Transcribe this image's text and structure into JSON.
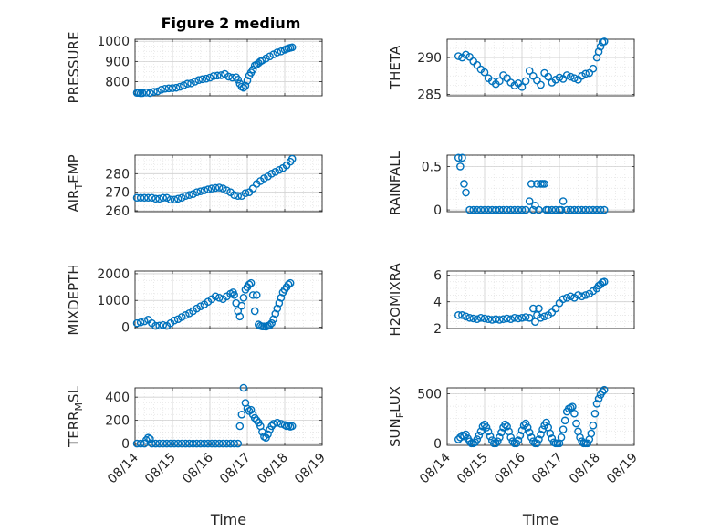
{
  "figure": {
    "title": "Figure 2 medium"
  },
  "colors": {
    "marker": "#0072BD",
    "grid": "#d0d0d0",
    "axis": "#262626"
  },
  "chart_data": [
    {
      "type": "scatter",
      "ylabel": "PRESSURE",
      "yticks": [
        800,
        900,
        1000
      ],
      "ylim": [
        730,
        1010
      ],
      "xlim": [
        0,
        5
      ],
      "xticks": [
        0,
        1,
        2,
        3,
        4,
        5
      ],
      "xticklabels": [],
      "xlabel": "",
      "title": "Figure 2 medium",
      "x": [
        0.05,
        0.1,
        0.15,
        0.2,
        0.3,
        0.4,
        0.5,
        0.6,
        0.7,
        0.8,
        0.9,
        1.0,
        1.1,
        1.2,
        1.3,
        1.4,
        1.5,
        1.6,
        1.7,
        1.8,
        1.9,
        2.0,
        2.1,
        2.2,
        2.3,
        2.4,
        2.5,
        2.6,
        2.7,
        2.75,
        2.8,
        2.85,
        2.9,
        2.95,
        3.0,
        3.05,
        3.1,
        3.15,
        3.2,
        3.25,
        3.3,
        3.35,
        3.4,
        3.5,
        3.6,
        3.7,
        3.8,
        3.9,
        4.0,
        4.05,
        4.1,
        4.15,
        4.2
      ],
      "y": [
        745,
        745,
        743,
        744,
        746,
        744,
        750,
        752,
        760,
        765,
        767,
        768,
        770,
        775,
        782,
        790,
        792,
        800,
        808,
        812,
        815,
        820,
        828,
        830,
        832,
        838,
        825,
        820,
        822,
        810,
        790,
        775,
        770,
        780,
        805,
        830,
        845,
        860,
        880,
        885,
        892,
        900,
        905,
        915,
        925,
        935,
        945,
        950,
        958,
        962,
        965,
        968,
        970
      ]
    },
    {
      "type": "scatter",
      "ylabel": "THETA",
      "yticks": [
        285,
        290
      ],
      "ylim": [
        284.8,
        292.5
      ],
      "xlim": [
        0,
        5
      ],
      "xticks": [
        0,
        1,
        2,
        3,
        4,
        5
      ],
      "xticklabels": [],
      "xlabel": "",
      "x": [
        0.3,
        0.4,
        0.5,
        0.6,
        0.7,
        0.8,
        0.9,
        1.0,
        1.1,
        1.2,
        1.3,
        1.4,
        1.5,
        1.6,
        1.7,
        1.8,
        1.9,
        2.0,
        2.1,
        2.2,
        2.3,
        2.4,
        2.5,
        2.6,
        2.7,
        2.8,
        2.9,
        3.0,
        3.1,
        3.2,
        3.3,
        3.4,
        3.5,
        3.6,
        3.7,
        3.8,
        3.9,
        4.0,
        4.05,
        4.1,
        4.15,
        4.2
      ],
      "y": [
        290.2,
        290.0,
        290.4,
        290.1,
        289.5,
        289.0,
        288.4,
        288.0,
        287.2,
        286.8,
        286.4,
        286.8,
        287.6,
        287.2,
        286.6,
        286.2,
        286.5,
        286.0,
        286.8,
        288.2,
        287.5,
        286.9,
        286.3,
        287.9,
        287.4,
        286.6,
        287.0,
        287.3,
        287.1,
        287.6,
        287.4,
        287.2,
        287.0,
        287.5,
        287.8,
        287.9,
        288.5,
        290.0,
        290.8,
        291.5,
        292.1,
        292.2
      ]
    },
    {
      "type": "scatter",
      "ylabel": "AIR_TEMP",
      "yticks": [
        260,
        270,
        280
      ],
      "ylim": [
        259.5,
        290
      ],
      "xlim": [
        0,
        5
      ],
      "xticks": [
        0,
        1,
        2,
        3,
        4,
        5
      ],
      "xticklabels": [],
      "xlabel": "",
      "x": [
        0.05,
        0.15,
        0.25,
        0.35,
        0.45,
        0.55,
        0.65,
        0.75,
        0.85,
        0.95,
        1.05,
        1.15,
        1.25,
        1.35,
        1.45,
        1.55,
        1.65,
        1.75,
        1.85,
        1.95,
        2.05,
        2.15,
        2.25,
        2.35,
        2.45,
        2.55,
        2.65,
        2.75,
        2.85,
        2.95,
        3.05,
        3.15,
        3.25,
        3.35,
        3.45,
        3.55,
        3.65,
        3.75,
        3.85,
        3.95,
        4.05,
        4.15,
        4.2
      ],
      "y": [
        267,
        267,
        267,
        267,
        267,
        266.5,
        266.5,
        267,
        267,
        266,
        266,
        266.5,
        267,
        268,
        268.5,
        269,
        270,
        270.5,
        271,
        271.5,
        272,
        272.3,
        272.5,
        272,
        271,
        270,
        268.5,
        268,
        268,
        269.5,
        270,
        272,
        274.5,
        276,
        277.5,
        278.5,
        280,
        281,
        282,
        283,
        284.5,
        286.5,
        288
      ]
    },
    {
      "type": "scatter",
      "ylabel": "RAINFALL",
      "yticks": [
        0,
        0.5
      ],
      "ylim": [
        -0.02,
        0.63
      ],
      "xlim": [
        0,
        5
      ],
      "xticks": [
        0,
        1,
        2,
        3,
        4,
        5
      ],
      "xticklabels": [],
      "xlabel": "",
      "x": [
        0.3,
        0.35,
        0.4,
        0.45,
        0.5,
        0.6,
        0.7,
        0.8,
        0.9,
        1.0,
        1.1,
        1.2,
        1.3,
        1.4,
        1.5,
        1.6,
        1.7,
        1.8,
        1.9,
        2.0,
        2.1,
        2.2,
        2.25,
        2.3,
        2.35,
        2.4,
        2.45,
        2.5,
        2.55,
        2.6,
        2.65,
        2.7,
        2.8,
        2.9,
        3.0,
        3.05,
        3.1,
        3.2,
        3.3,
        3.4,
        3.5,
        3.6,
        3.7,
        3.8,
        3.9,
        4.0,
        4.1,
        4.2
      ],
      "y": [
        0.6,
        0.5,
        0.6,
        0.3,
        0.2,
        0,
        0,
        0,
        0,
        0,
        0,
        0,
        0,
        0,
        0,
        0,
        0,
        0,
        0,
        0,
        0,
        0.1,
        0.3,
        0,
        0.05,
        0.3,
        0,
        0.3,
        0.3,
        0.3,
        0,
        0,
        0,
        0,
        0,
        0,
        0.1,
        0,
        0,
        0,
        0,
        0,
        0,
        0,
        0,
        0,
        0,
        0
      ]
    },
    {
      "type": "scatter",
      "ylabel": "MIXDEPTH",
      "yticks": [
        0,
        1000,
        2000
      ],
      "ylim": [
        -50,
        2100
      ],
      "xlim": [
        0,
        5
      ],
      "xticks": [
        0,
        1,
        2,
        3,
        4,
        5
      ],
      "xticklabels": [],
      "xlabel": "",
      "x": [
        0.05,
        0.15,
        0.25,
        0.35,
        0.45,
        0.55,
        0.65,
        0.75,
        0.85,
        0.95,
        1.05,
        1.15,
        1.25,
        1.35,
        1.45,
        1.55,
        1.65,
        1.75,
        1.85,
        1.95,
        2.05,
        2.15,
        2.25,
        2.35,
        2.45,
        2.55,
        2.62,
        2.65,
        2.7,
        2.75,
        2.8,
        2.85,
        2.9,
        2.95,
        3.0,
        3.05,
        3.1,
        3.15,
        3.2,
        3.25,
        3.3,
        3.35,
        3.4,
        3.45,
        3.5,
        3.55,
        3.6,
        3.65,
        3.7,
        3.75,
        3.8,
        3.85,
        3.9,
        3.95,
        4.0,
        4.05,
        4.1,
        4.15
      ],
      "y": [
        150,
        180,
        220,
        280,
        150,
        50,
        60,
        80,
        50,
        150,
        250,
        300,
        380,
        450,
        520,
        600,
        700,
        780,
        850,
        950,
        1050,
        1150,
        1100,
        1050,
        1150,
        1250,
        1300,
        1200,
        900,
        600,
        400,
        800,
        1100,
        1400,
        1500,
        1600,
        1650,
        1200,
        600,
        1200,
        100,
        50,
        30,
        30,
        20,
        50,
        80,
        150,
        300,
        500,
        700,
        900,
        1100,
        1300,
        1400,
        1500,
        1600,
        1650
      ]
    },
    {
      "type": "scatter",
      "ylabel": "H2OMIXRA",
      "yticks": [
        2,
        4,
        6
      ],
      "ylim": [
        2,
        6.3
      ],
      "xlim": [
        0,
        5
      ],
      "xticks": [
        0,
        1,
        2,
        3,
        4,
        5
      ],
      "xticklabels": [],
      "xlabel": "",
      "x": [
        0.3,
        0.4,
        0.5,
        0.6,
        0.7,
        0.8,
        0.9,
        1.0,
        1.1,
        1.2,
        1.3,
        1.4,
        1.5,
        1.6,
        1.7,
        1.8,
        1.9,
        2.0,
        2.1,
        2.2,
        2.3,
        2.35,
        2.4,
        2.45,
        2.5,
        2.6,
        2.7,
        2.8,
        2.9,
        3.0,
        3.1,
        3.2,
        3.3,
        3.4,
        3.5,
        3.6,
        3.7,
        3.8,
        3.9,
        4.0,
        4.05,
        4.1,
        4.15,
        4.2
      ],
      "y": [
        3,
        3,
        2.9,
        2.8,
        2.75,
        2.7,
        2.8,
        2.75,
        2.7,
        2.65,
        2.7,
        2.65,
        2.7,
        2.75,
        2.7,
        2.8,
        2.75,
        2.8,
        2.85,
        2.8,
        3.5,
        2.5,
        3.0,
        3.5,
        2.8,
        2.9,
        3.0,
        3.2,
        3.5,
        3.9,
        4.2,
        4.3,
        4.4,
        4.3,
        4.5,
        4.4,
        4.5,
        4.6,
        4.8,
        5.0,
        5.2,
        5.3,
        5.45,
        5.5
      ]
    },
    {
      "type": "scatter",
      "ylabel": "TERR_MSL",
      "yticks": [
        0,
        200,
        400
      ],
      "ylim": [
        -15,
        480
      ],
      "xlim": [
        0,
        5
      ],
      "xticks": [
        0,
        1,
        2,
        3,
        4,
        5
      ],
      "xticklabels": [
        "08/14",
        "08/15",
        "08/16",
        "08/17",
        "08/18",
        "08/19"
      ],
      "xlabel": "Time",
      "x": [
        0.05,
        0.15,
        0.25,
        0.3,
        0.35,
        0.4,
        0.45,
        0.55,
        0.65,
        0.75,
        0.85,
        0.95,
        1.05,
        1.15,
        1.25,
        1.35,
        1.45,
        1.55,
        1.65,
        1.75,
        1.85,
        1.95,
        2.05,
        2.15,
        2.25,
        2.35,
        2.45,
        2.55,
        2.65,
        2.75,
        2.8,
        2.85,
        2.9,
        2.95,
        3.0,
        3.05,
        3.1,
        3.15,
        3.2,
        3.25,
        3.3,
        3.35,
        3.4,
        3.45,
        3.5,
        3.55,
        3.6,
        3.65,
        3.7,
        3.8,
        3.9,
        4.0,
        4.05,
        4.1,
        4.15,
        4.2
      ],
      "y": [
        0,
        0,
        0,
        30,
        50,
        40,
        0,
        0,
        0,
        0,
        0,
        0,
        0,
        0,
        0,
        0,
        0,
        0,
        0,
        0,
        0,
        0,
        0,
        0,
        0,
        0,
        0,
        0,
        0,
        0,
        150,
        250,
        480,
        350,
        300,
        280,
        290,
        250,
        220,
        200,
        180,
        150,
        100,
        60,
        50,
        80,
        120,
        150,
        170,
        180,
        170,
        160,
        150,
        155,
        145,
        150
      ]
    },
    {
      "type": "scatter",
      "ylabel": "SUN_FLUX",
      "yticks": [
        0,
        500
      ],
      "ylim": [
        -20,
        560
      ],
      "xlim": [
        0,
        5
      ],
      "xticks": [
        0,
        1,
        2,
        3,
        4,
        5
      ],
      "xticklabels": [
        "08/14",
        "08/15",
        "08/16",
        "08/17",
        "08/18",
        "08/19"
      ],
      "xlabel": "Time",
      "x": [
        0.3,
        0.35,
        0.4,
        0.45,
        0.5,
        0.55,
        0.6,
        0.65,
        0.7,
        0.75,
        0.8,
        0.85,
        0.9,
        0.95,
        1.0,
        1.05,
        1.1,
        1.15,
        1.2,
        1.25,
        1.3,
        1.35,
        1.4,
        1.45,
        1.5,
        1.55,
        1.6,
        1.65,
        1.7,
        1.75,
        1.8,
        1.85,
        1.9,
        1.95,
        2.0,
        2.05,
        2.1,
        2.15,
        2.2,
        2.25,
        2.3,
        2.35,
        2.4,
        2.45,
        2.5,
        2.55,
        2.6,
        2.65,
        2.7,
        2.75,
        2.8,
        2.85,
        2.9,
        2.95,
        3.0,
        3.05,
        3.1,
        3.15,
        3.2,
        3.25,
        3.3,
        3.35,
        3.4,
        3.45,
        3.5,
        3.55,
        3.6,
        3.65,
        3.7,
        3.75,
        3.8,
        3.85,
        3.9,
        3.95,
        4.0,
        4.05,
        4.1,
        4.15,
        4.2
      ],
      "y": [
        40,
        60,
        80,
        70,
        90,
        50,
        20,
        0,
        0,
        10,
        40,
        80,
        120,
        170,
        190,
        160,
        120,
        70,
        30,
        0,
        0,
        20,
        60,
        110,
        160,
        190,
        170,
        120,
        60,
        20,
        0,
        0,
        30,
        80,
        130,
        180,
        200,
        160,
        110,
        60,
        20,
        0,
        0,
        40,
        90,
        140,
        180,
        210,
        160,
        100,
        50,
        10,
        0,
        0,
        0,
        60,
        140,
        230,
        320,
        350,
        360,
        370,
        300,
        200,
        120,
        60,
        20,
        0,
        0,
        0,
        40,
        100,
        180,
        300,
        400,
        450,
        490,
        520,
        540
      ]
    }
  ]
}
